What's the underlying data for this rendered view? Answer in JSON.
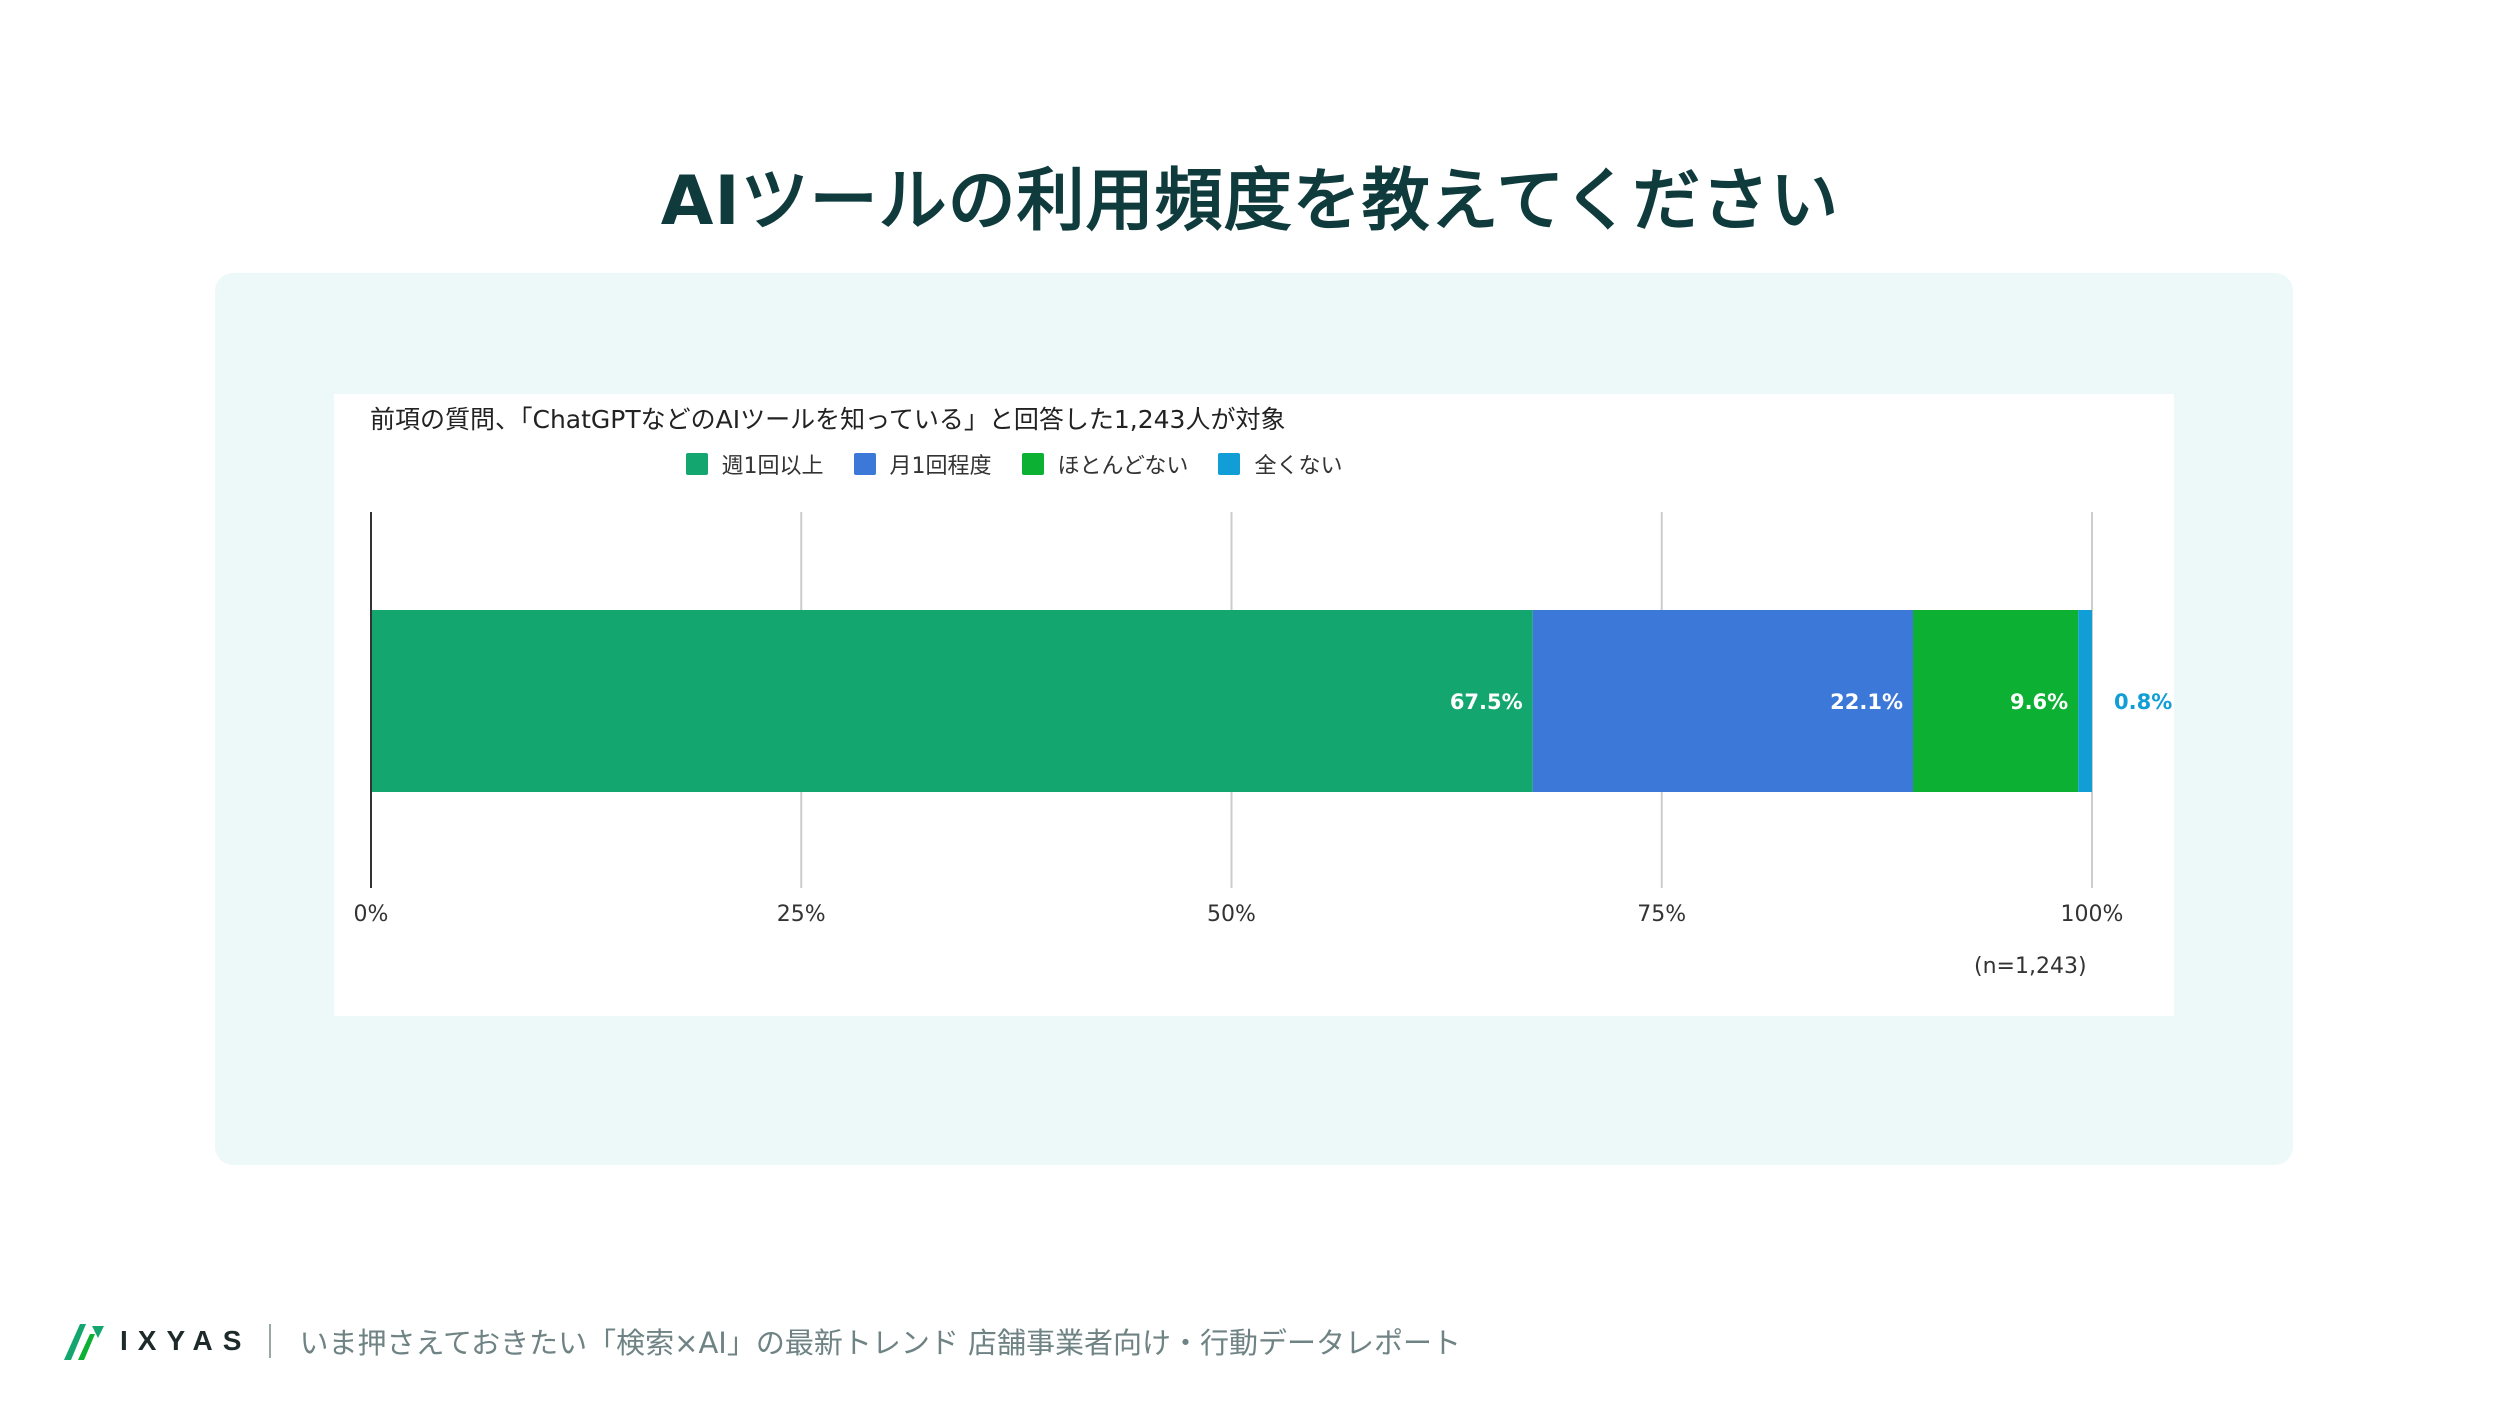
{
  "title": "AIツールの利用頻度を教えてください",
  "footer": {
    "brand": "IXYAS",
    "text": "いま押さえておきたい「検索×AI」の最新トレンド 店舗事業者向け・行動データレポート"
  },
  "chart_data": {
    "type": "bar",
    "orientation": "horizontal",
    "stacked": true,
    "title": "前項の質問、「ChatGPTなどのAIツールを知っている」と回答した1,243人が対象",
    "categories": [
      ""
    ],
    "series": [
      {
        "name": "週1回以上",
        "values": [
          67.5
        ],
        "label": "67.5%",
        "color": "#13a66f"
      },
      {
        "name": "月1回程度",
        "values": [
          22.1
        ],
        "label": "22.1%",
        "color": "#3c78d8"
      },
      {
        "name": "ほとんどない",
        "values": [
          9.6
        ],
        "label": "9.6%",
        "color": "#0cb032"
      },
      {
        "name": "全くない",
        "values": [
          0.8
        ],
        "label": "0.8%",
        "color": "#119ed7"
      }
    ],
    "xlim": [
      0,
      100
    ],
    "xticks": [
      "0%",
      "25%",
      "50%",
      "75%",
      "100%"
    ],
    "grid": true,
    "legend": "top-center",
    "note": "(n=1,243)"
  }
}
